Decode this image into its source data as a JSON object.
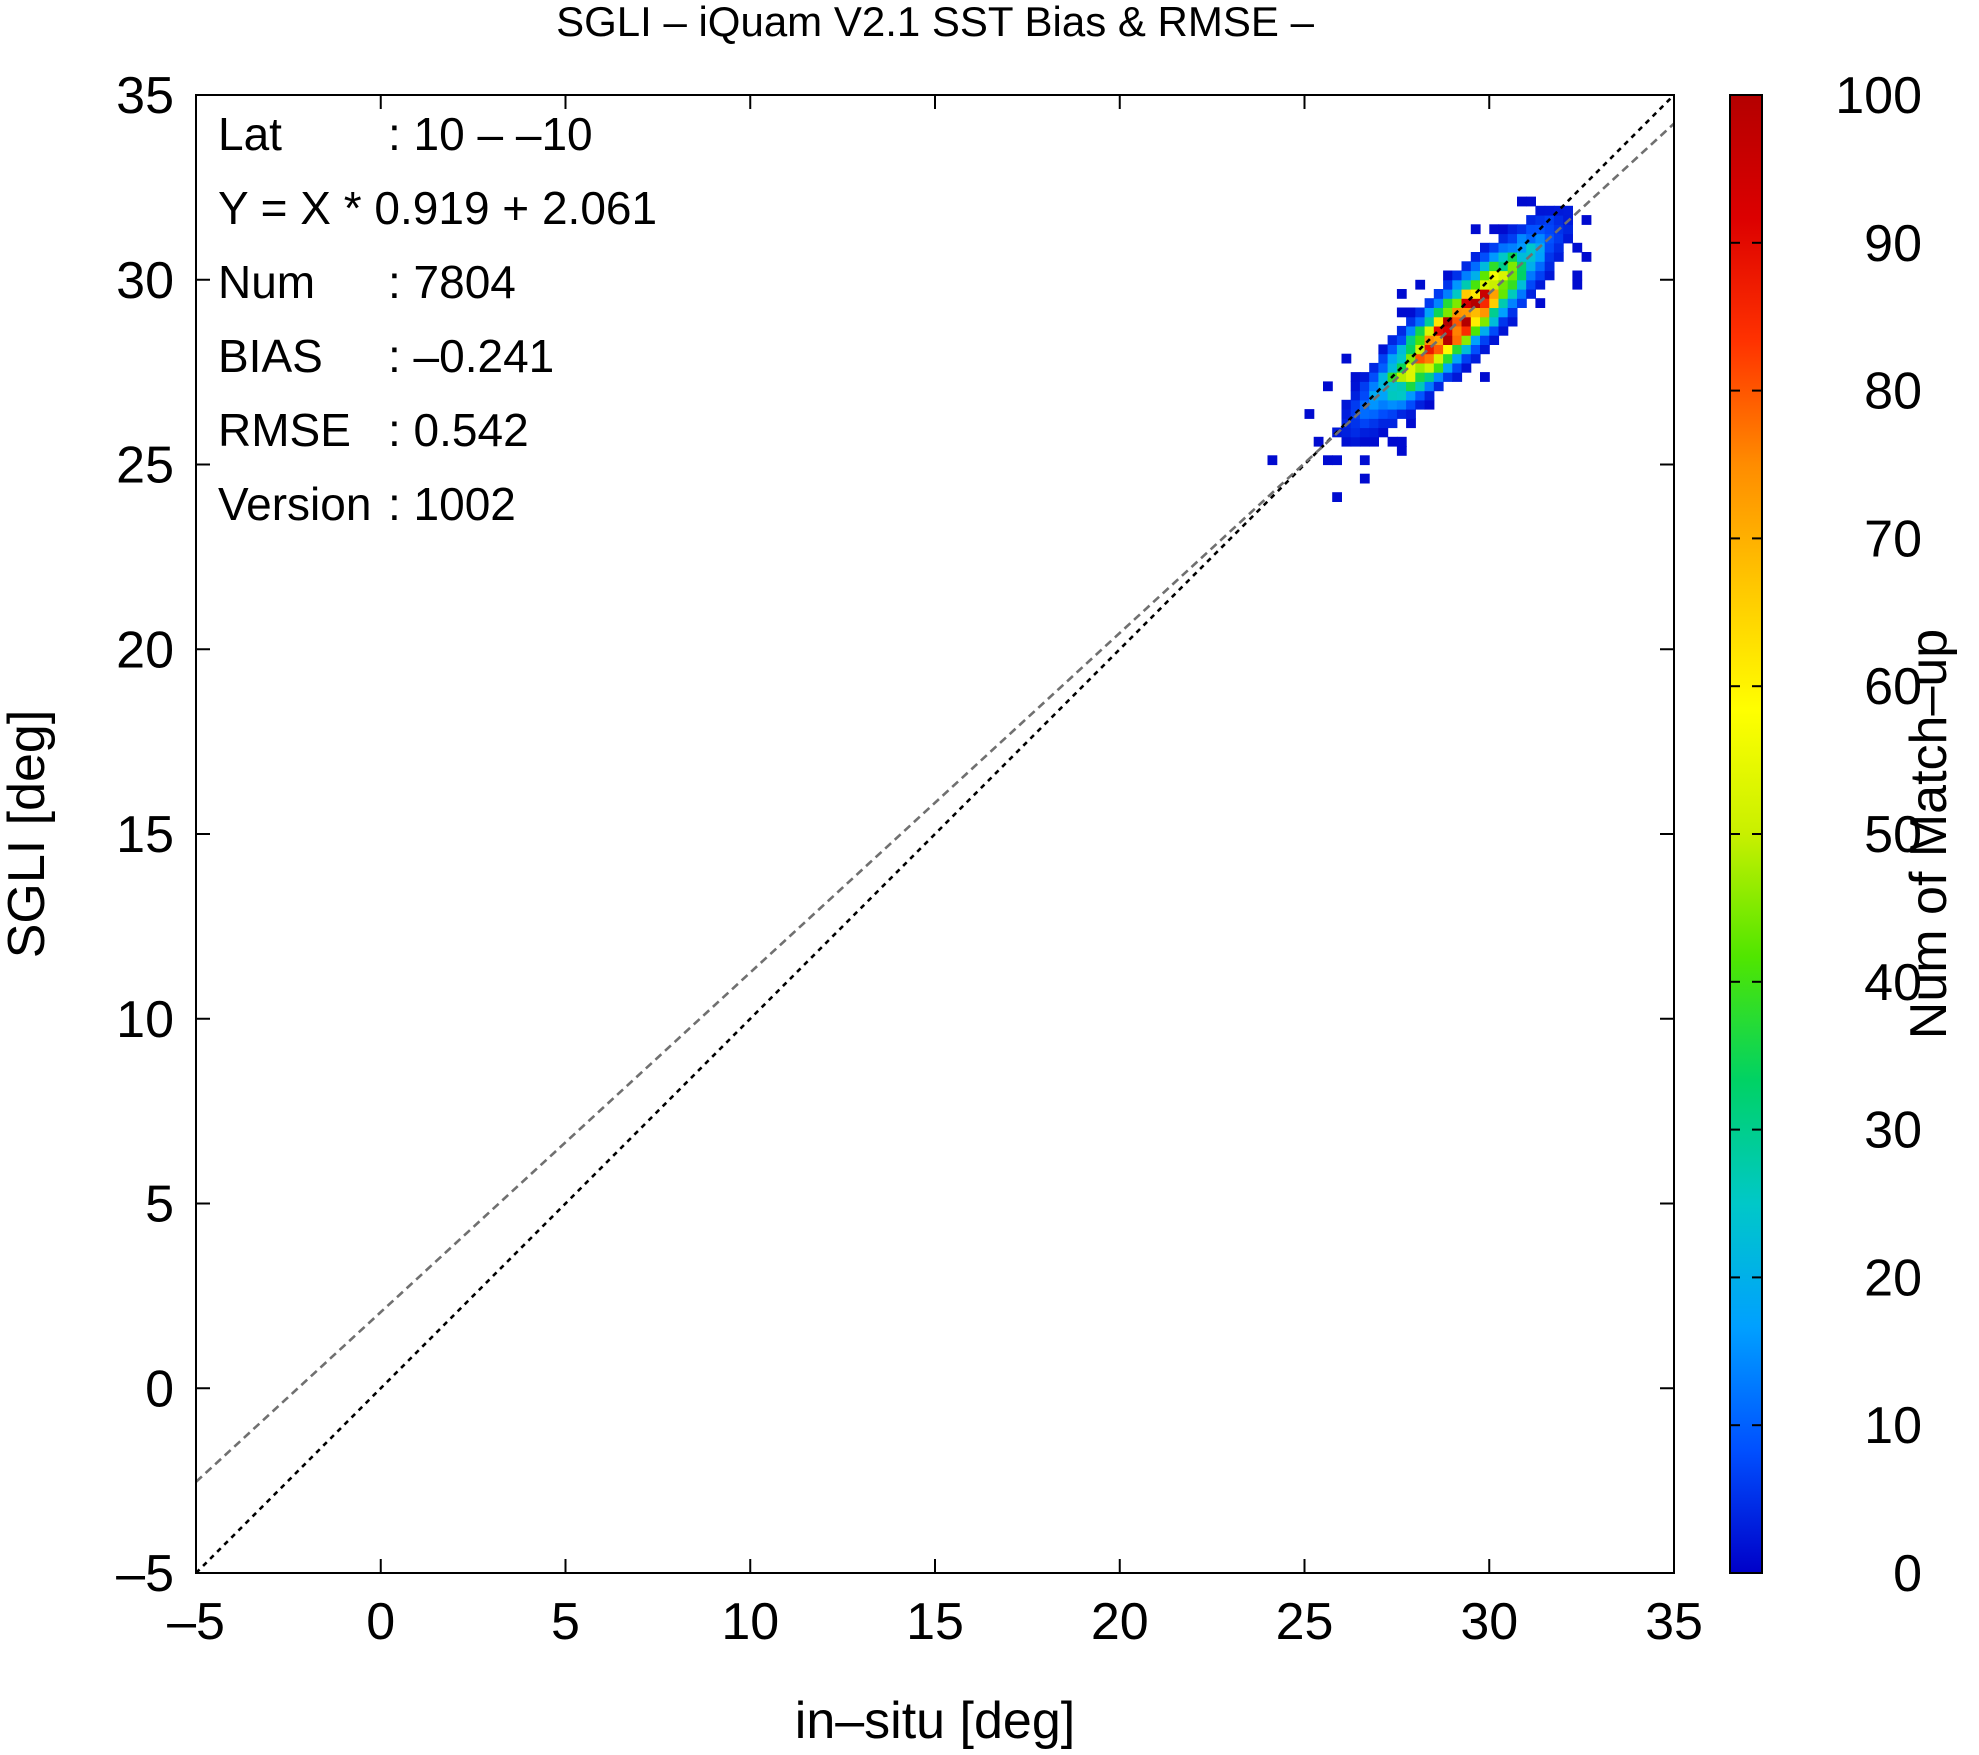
{
  "chart_data": {
    "type": "heatmap",
    "title": "SGLI – iQuam V2.1 SST Bias & RMSE  –",
    "xlabel": "in–situ [deg]",
    "ylabel": "SGLI [deg]",
    "colorbar_label": "Num of Match–up",
    "xlim": [
      -5,
      35
    ],
    "ylim": [
      -5,
      35
    ],
    "x_ticks": [
      "–5",
      "0",
      "5",
      "10",
      "15",
      "20",
      "25",
      "30",
      "35"
    ],
    "y_ticks": [
      "–5",
      "0",
      "5",
      "10",
      "15",
      "20",
      "25",
      "30",
      "35"
    ],
    "colorbar_range": [
      0,
      100
    ],
    "colorbar_ticks": [
      "0",
      "10",
      "20",
      "30",
      "40",
      "50",
      "60",
      "70",
      "80",
      "90",
      "100"
    ],
    "colormap": [
      "#0000c8",
      "#0050ff",
      "#00a0ff",
      "#00c8c8",
      "#00d264",
      "#50e600",
      "#c8f000",
      "#ffff00",
      "#ffc800",
      "#ff8c00",
      "#ff3200",
      "#dc0000",
      "#b40000"
    ],
    "stats": [
      {
        "label": "Lat",
        "value": ": 10 – –10"
      },
      {
        "label": "Y = X * 0.919 + 2.061",
        "value": ""
      },
      {
        "label": "Num",
        "value": ": 7804"
      },
      {
        "label": "BIAS",
        "value": ": –0.241"
      },
      {
        "label": "RMSE",
        "value": ": 0.542"
      },
      {
        "label": "Version",
        "value": ": 1002"
      }
    ],
    "lines": [
      {
        "kind": "one-to-one",
        "slope": 1.0,
        "intercept": 0.0,
        "color": "#000000",
        "style": "dotted"
      },
      {
        "kind": "regression",
        "slope": 0.919,
        "intercept": 2.061,
        "color": "#707070",
        "style": "dashed"
      }
    ],
    "density": {
      "center_x": 29.0,
      "center_y": 28.7,
      "spread_along": 1.6,
      "spread_across": 0.38,
      "peak_count": 100,
      "bin_size": 0.25
    }
  }
}
